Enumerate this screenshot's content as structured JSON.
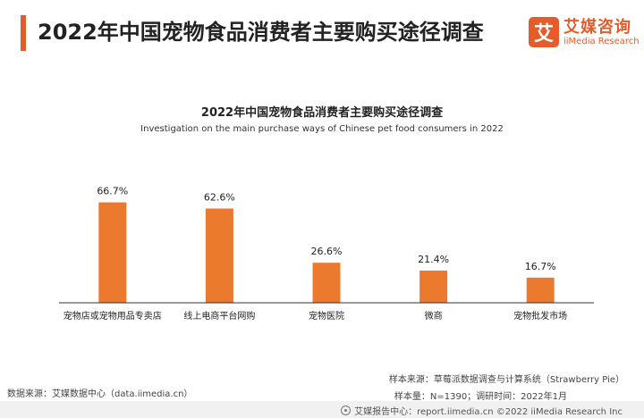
{
  "header": {
    "title": "2022年中国宠物食品消费者主要购买途径调查",
    "logo_mark": "艾",
    "logo_cn": "艾媒咨询",
    "logo_en": "iiMedia Research"
  },
  "colors": {
    "accent": "#e35c2a",
    "bar": "#ec7a2e",
    "axis": "#333333"
  },
  "chart_data": {
    "type": "bar",
    "title": "2022年中国宠物食品消费者主要购买途径调查",
    "subtitle": "Investigation on the main purchase ways of Chinese pet food consumers in 2022",
    "categories": [
      "宠物店或宠物用品专卖店",
      "线上电商平台网购",
      "宠物医院",
      "微商",
      "宠物批发市场"
    ],
    "values": [
      66.7,
      62.6,
      26.6,
      21.4,
      16.7
    ],
    "value_labels": [
      "66.7%",
      "62.6%",
      "26.6%",
      "21.4%",
      "16.7%"
    ],
    "ylim": [
      0,
      70
    ],
    "grid": false,
    "legend": "none",
    "xlabel": "",
    "ylabel": ""
  },
  "footer": {
    "data_source": "数据来源：艾媒数据中心（data.iimedia.cn）",
    "sample_source": "样本来源：草莓派数据调查与计算系统（Strawberry Pie）",
    "sample_size": "样本量：N=1390；调研时间：2022年1月",
    "bottom": "艾媒报告中心：report.iimedia.cn    ©2022  iiMedia Research  Inc"
  }
}
